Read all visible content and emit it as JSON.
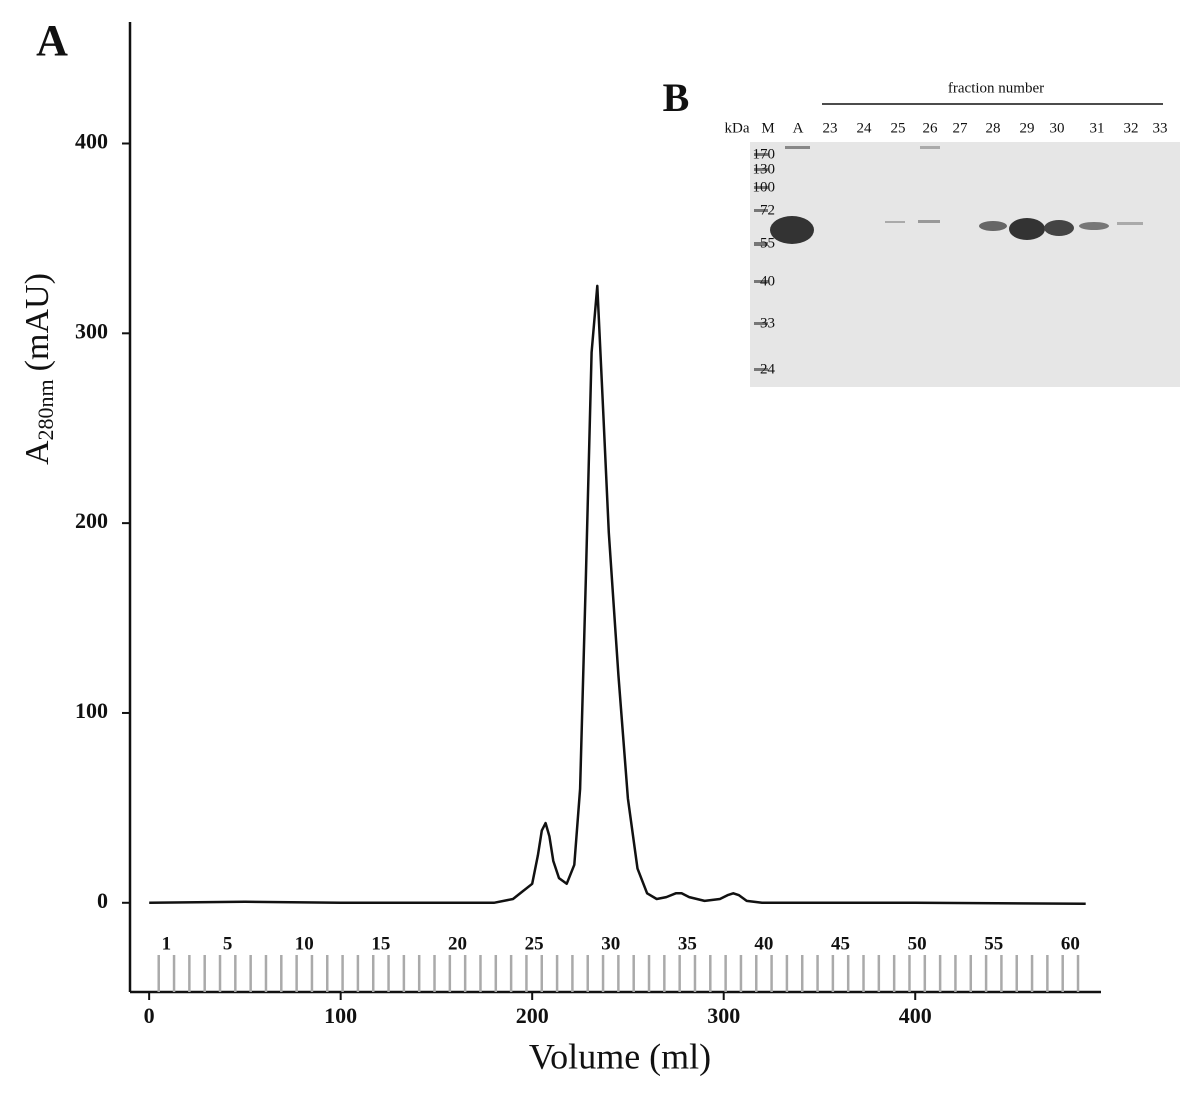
{
  "chart_data": {
    "type": "line",
    "panel_label": "A",
    "y_label": {
      "main": "A",
      "sub": "280nm",
      "unit": "(mAU)"
    },
    "x_label": "Volume  (ml)",
    "color": "#111111",
    "x": [
      0,
      50,
      100,
      150,
      180,
      190,
      195,
      200,
      203,
      205,
      207,
      209,
      211,
      214,
      218,
      222,
      225,
      228,
      231,
      234,
      237,
      240,
      245,
      250,
      255,
      260,
      265,
      270,
      275,
      278,
      282,
      290,
      298,
      302,
      305,
      308,
      312,
      320,
      400,
      489
    ],
    "values": [
      0,
      0.5,
      0,
      0,
      0,
      2,
      6,
      10,
      25,
      38,
      42,
      35,
      22,
      13,
      10,
      20,
      60,
      170,
      290,
      325,
      260,
      195,
      120,
      55,
      18,
      5,
      2,
      3,
      5,
      5,
      3,
      1,
      2,
      4,
      5,
      4,
      1,
      0,
      0,
      -0.5
    ],
    "xlim": [
      -10,
      497
    ],
    "ylim": [
      -47,
      464
    ],
    "xticks": [
      0,
      100,
      200,
      300,
      400
    ],
    "yticks": [
      0,
      100,
      200,
      300,
      400
    ],
    "fraction_boundaries": [
      5,
      13,
      21,
      29,
      37,
      45,
      53,
      61,
      69,
      77,
      85,
      93,
      101,
      109,
      117,
      125,
      133,
      141,
      149,
      157,
      165,
      173,
      181,
      189,
      197,
      205,
      213,
      221,
      229,
      237,
      245,
      253,
      261,
      269,
      277,
      285,
      293,
      301,
      309,
      317,
      325,
      333,
      341,
      349,
      357,
      365,
      373,
      381,
      389,
      397,
      405,
      413,
      421,
      429,
      437,
      445,
      453,
      461,
      469,
      477,
      485
    ],
    "fraction_labels": [
      {
        "value": 9,
        "label": "1"
      },
      {
        "value": 41,
        "label": "5"
      },
      {
        "value": 81,
        "label": "10"
      },
      {
        "value": 121,
        "label": "15"
      },
      {
        "value": 161,
        "label": "20"
      },
      {
        "value": 201,
        "label": "25"
      },
      {
        "value": 241,
        "label": "30"
      },
      {
        "value": 281,
        "label": "35"
      },
      {
        "value": 321,
        "label": "40"
      },
      {
        "value": 361,
        "label": "45"
      },
      {
        "value": 401,
        "label": "50"
      },
      {
        "value": 441,
        "label": "55"
      },
      {
        "value": 481,
        "label": "60"
      }
    ]
  },
  "inset": {
    "panel_label": "B",
    "title": "fraction number",
    "lanes": [
      "kDa",
      "M",
      "A",
      "23",
      "24",
      "25",
      "26",
      "27",
      "28",
      "29",
      "30",
      "31",
      "32",
      "33"
    ],
    "markers": [
      "170",
      "130",
      "100",
      "72",
      "55",
      "40",
      "33",
      "24"
    ]
  }
}
